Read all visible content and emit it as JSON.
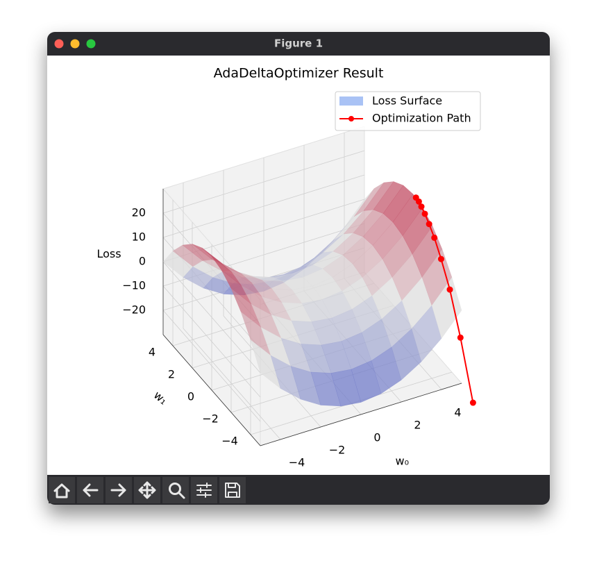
{
  "window": {
    "title": "Figure 1"
  },
  "chart_data": {
    "type": "surface3d",
    "title": "AdaDeltaOptimizer Result",
    "xlabel": "w₀",
    "ylabel": "w₁",
    "zlabel": "Loss",
    "xlim": [
      -5,
      5
    ],
    "ylim": [
      -5,
      5
    ],
    "zlim": [
      -30,
      30
    ],
    "xticks": [
      {
        "value": -4,
        "label": "−4"
      },
      {
        "value": -2,
        "label": "−2"
      },
      0,
      2,
      4
    ],
    "yticks": [
      {
        "value": -4,
        "label": "−4"
      },
      {
        "value": -2,
        "label": "−2"
      },
      0,
      2,
      4
    ],
    "zticks": [
      {
        "value": -20,
        "label": "−20"
      },
      {
        "value": -10,
        "label": "−10"
      },
      0,
      10,
      20
    ],
    "grid": true,
    "legend": "upper right",
    "surface": {
      "name": "Loss Surface",
      "color": "#a9c2f5",
      "x": [
        -5,
        -4,
        -3,
        -2,
        -1,
        0,
        1,
        2,
        3,
        4,
        5
      ],
      "y": [
        -5,
        -4,
        -3,
        -2,
        -1,
        0,
        1,
        2,
        3,
        4,
        5
      ],
      "z": [
        [
          0,
          -9,
          -16,
          -21,
          -24,
          -25,
          -24,
          -21,
          -16,
          -9,
          0
        ],
        [
          9,
          0,
          -7,
          -12,
          -15,
          -16,
          -15,
          -12,
          -7,
          0,
          9
        ],
        [
          16,
          7,
          0,
          -5,
          -8,
          -9,
          -8,
          -5,
          0,
          7,
          16
        ],
        [
          21,
          12,
          5,
          0,
          -3,
          -4,
          -3,
          0,
          5,
          12,
          21
        ],
        [
          24,
          15,
          8,
          3,
          0,
          -1,
          0,
          3,
          8,
          15,
          24
        ],
        [
          25,
          16,
          9,
          4,
          1,
          0,
          1,
          4,
          9,
          16,
          25
        ],
        [
          24,
          15,
          8,
          3,
          0,
          -1,
          0,
          3,
          8,
          15,
          24
        ],
        [
          21,
          12,
          5,
          0,
          -3,
          -4,
          -3,
          0,
          5,
          12,
          21
        ],
        [
          16,
          7,
          0,
          -5,
          -8,
          -9,
          -8,
          -5,
          0,
          7,
          16
        ],
        [
          9,
          0,
          -7,
          -12,
          -15,
          -16,
          -15,
          -12,
          -7,
          0,
          9
        ],
        [
          0,
          -9,
          -16,
          -21,
          -24,
          -25,
          -24,
          -21,
          -16,
          -9,
          0
        ]
      ]
    },
    "path": {
      "name": "Optimization Path",
      "color": "#ff0000",
      "x": [
        4.6,
        4.7,
        4.8,
        4.85,
        4.9,
        4.93,
        4.96,
        4.98,
        5.0,
        5.0
      ],
      "y": [
        -7,
        -5.5,
        -4.2,
        -3.2,
        -2.4,
        -1.8,
        -1.3,
        -0.9,
        -0.6,
        -0.3
      ],
      "z": [
        -27.84,
        -8.16,
        5.4,
        13.28,
        18.25,
        21.06,
        22.91,
        23.99,
        24.64,
        24.91
      ]
    }
  }
}
